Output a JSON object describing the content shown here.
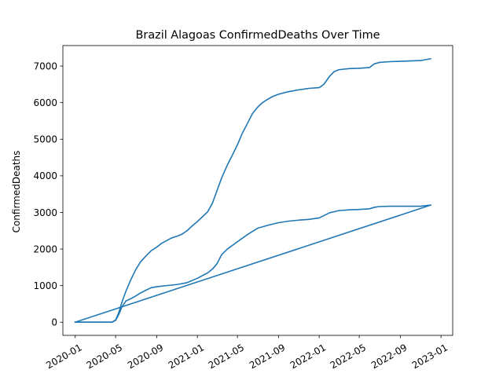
{
  "chart_data": {
    "type": "line",
    "title": "Brazil Alagoas ConfirmedDeaths Over Time",
    "xlabel": "",
    "ylabel": "ConfirmedDeaths",
    "x_ticks": [
      "2020-01",
      "2020-05",
      "2020-09",
      "2021-01",
      "2021-05",
      "2021-09",
      "2022-01",
      "2022-05",
      "2022-09",
      "2023-01"
    ],
    "y_ticks": [
      0,
      1000,
      2000,
      3000,
      4000,
      5000,
      6000,
      7000
    ],
    "xlim": [
      "2019-11-25",
      "2023-02-05"
    ],
    "ylim": [
      -360,
      7560
    ],
    "grid": false,
    "legend": "none",
    "color": "#1f77b4",
    "series": [
      {
        "points": [
          [
            "2020-01-01",
            0
          ],
          [
            "2020-03-15",
            0
          ],
          [
            "2020-04-20",
            0
          ],
          [
            "2020-05-01",
            60
          ],
          [
            "2020-05-10",
            250
          ],
          [
            "2020-05-20",
            550
          ],
          [
            "2020-06-01",
            850
          ],
          [
            "2020-06-15",
            1150
          ],
          [
            "2020-07-01",
            1450
          ],
          [
            "2020-07-15",
            1650
          ],
          [
            "2020-08-01",
            1820
          ],
          [
            "2020-08-15",
            1950
          ],
          [
            "2020-09-01",
            2050
          ],
          [
            "2020-09-15",
            2150
          ],
          [
            "2020-10-01",
            2230
          ],
          [
            "2020-10-15",
            2300
          ],
          [
            "2020-11-01",
            2350
          ],
          [
            "2020-11-15",
            2400
          ],
          [
            "2020-12-01",
            2500
          ],
          [
            "2020-12-15",
            2620
          ],
          [
            "2021-01-01",
            2750
          ],
          [
            "2021-01-15",
            2870
          ],
          [
            "2021-02-01",
            3020
          ],
          [
            "2021-02-15",
            3250
          ],
          [
            "2021-03-01",
            3600
          ],
          [
            "2021-03-15",
            3950
          ],
          [
            "2021-04-01",
            4300
          ],
          [
            "2021-04-15",
            4550
          ],
          [
            "2021-05-01",
            4850
          ],
          [
            "2021-05-15",
            5150
          ],
          [
            "2021-06-01",
            5450
          ],
          [
            "2021-06-15",
            5700
          ],
          [
            "2021-07-01",
            5880
          ],
          [
            "2021-07-15",
            6000
          ],
          [
            "2021-08-01",
            6100
          ],
          [
            "2021-08-15",
            6170
          ],
          [
            "2021-09-01",
            6230
          ],
          [
            "2021-10-01",
            6300
          ],
          [
            "2021-11-01",
            6350
          ],
          [
            "2021-12-01",
            6390
          ],
          [
            "2022-01-01",
            6410
          ],
          [
            "2022-01-15",
            6500
          ],
          [
            "2022-02-01",
            6720
          ],
          [
            "2022-02-15",
            6850
          ],
          [
            "2022-03-01",
            6900
          ],
          [
            "2022-04-01",
            6930
          ],
          [
            "2022-05-01",
            6940
          ],
          [
            "2022-06-01",
            6960
          ],
          [
            "2022-06-15",
            7060
          ],
          [
            "2022-07-01",
            7100
          ],
          [
            "2022-08-01",
            7120
          ],
          [
            "2022-09-01",
            7130
          ],
          [
            "2022-10-01",
            7140
          ],
          [
            "2022-11-01",
            7150
          ],
          [
            "2022-12-01",
            7200
          ]
        ]
      },
      {
        "points": [
          [
            "2020-01-01",
            0
          ],
          [
            "2020-03-15",
            0
          ],
          [
            "2020-04-20",
            0
          ],
          [
            "2020-05-01",
            50
          ],
          [
            "2020-05-10",
            200
          ],
          [
            "2020-05-20",
            420
          ],
          [
            "2020-06-01",
            580
          ],
          [
            "2020-06-15",
            640
          ],
          [
            "2020-07-01",
            720
          ],
          [
            "2020-07-15",
            800
          ],
          [
            "2020-08-01",
            880
          ],
          [
            "2020-08-15",
            940
          ],
          [
            "2020-09-01",
            970
          ],
          [
            "2020-10-01",
            1000
          ],
          [
            "2020-11-01",
            1030
          ],
          [
            "2020-12-01",
            1080
          ],
          [
            "2021-01-01",
            1200
          ],
          [
            "2021-02-01",
            1350
          ],
          [
            "2021-02-15",
            1450
          ],
          [
            "2021-03-01",
            1600
          ],
          [
            "2021-03-15",
            1850
          ],
          [
            "2021-04-01",
            2000
          ],
          [
            "2021-05-01",
            2200
          ],
          [
            "2021-06-01",
            2400
          ],
          [
            "2021-07-01",
            2570
          ],
          [
            "2021-08-01",
            2650
          ],
          [
            "2021-09-01",
            2720
          ],
          [
            "2021-10-01",
            2760
          ],
          [
            "2021-11-01",
            2790
          ],
          [
            "2021-12-01",
            2810
          ],
          [
            "2022-01-01",
            2850
          ],
          [
            "2022-02-01",
            2990
          ],
          [
            "2022-03-01",
            3050
          ],
          [
            "2022-04-01",
            3070
          ],
          [
            "2022-05-01",
            3080
          ],
          [
            "2022-06-01",
            3100
          ],
          [
            "2022-06-15",
            3140
          ],
          [
            "2022-07-01",
            3160
          ],
          [
            "2022-08-01",
            3170
          ],
          [
            "2022-09-01",
            3170
          ],
          [
            "2022-10-01",
            3170
          ],
          [
            "2022-11-01",
            3170
          ],
          [
            "2022-12-01",
            3200
          ]
        ]
      },
      {
        "points": [
          [
            "2020-01-01",
            0
          ],
          [
            "2022-12-01",
            3200
          ]
        ]
      }
    ]
  }
}
